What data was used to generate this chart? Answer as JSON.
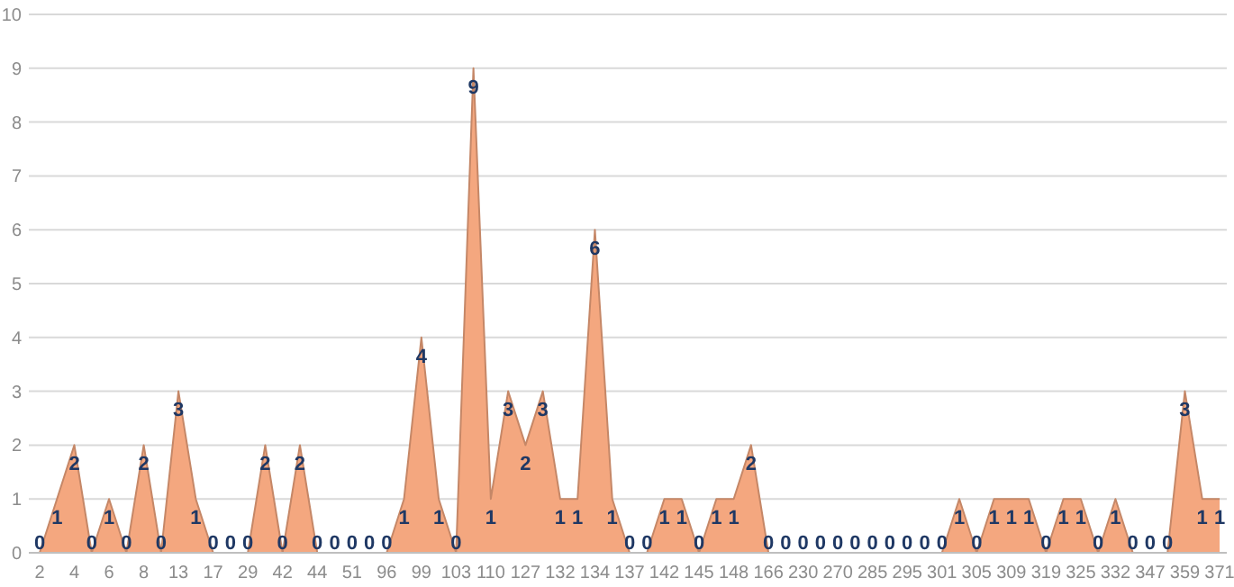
{
  "chart_data": {
    "type": "area",
    "categories": [
      "2",
      null,
      "4",
      null,
      "6",
      null,
      "8",
      null,
      "13",
      null,
      "17",
      null,
      "29",
      null,
      "42",
      null,
      "44",
      null,
      "51",
      null,
      "96",
      null,
      "99",
      null,
      "103",
      null,
      "110",
      null,
      "127",
      null,
      "132",
      null,
      "134",
      null,
      "137",
      null,
      "142",
      null,
      "145",
      null,
      "148",
      null,
      "166",
      null,
      "230",
      null,
      "270",
      null,
      "285",
      null,
      "295",
      null,
      "301",
      null,
      "305",
      null,
      "309",
      null,
      "319",
      null,
      "325",
      null,
      "332",
      null,
      "347",
      null,
      "359",
      null,
      "371"
    ],
    "series": [
      {
        "color": "#f4a77f",
        "values": [
          0,
          1,
          2,
          0,
          1,
          0,
          2,
          0,
          3,
          1,
          0,
          0,
          0,
          2,
          0,
          2,
          0,
          0,
          0,
          0,
          0,
          1,
          4,
          1,
          0,
          9,
          1,
          3,
          2,
          3,
          1,
          1,
          6,
          1,
          0,
          0,
          1,
          1,
          0,
          1,
          1,
          2,
          0,
          0,
          0,
          0,
          0,
          0,
          0,
          0,
          0,
          0,
          0,
          1,
          0,
          1,
          1,
          1,
          0,
          1,
          1,
          0,
          1,
          0,
          0,
          0,
          3,
          1,
          1
        ]
      }
    ],
    "ylim": [
      0,
      10
    ],
    "yticks": [
      0,
      1,
      2,
      3,
      4,
      5,
      6,
      7,
      8,
      9,
      10
    ],
    "grid": "y",
    "data_labels": true
  }
}
